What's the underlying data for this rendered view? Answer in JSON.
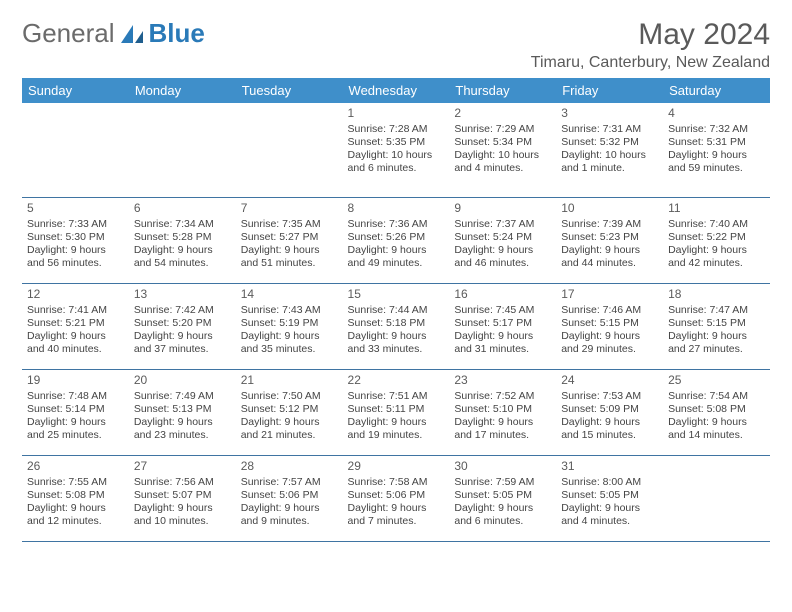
{
  "brand": {
    "part1": "General",
    "part2": "Blue"
  },
  "title": "May 2024",
  "location": "Timaru, Canterbury, New Zealand",
  "colors": {
    "header_bg": "#3f8fca",
    "header_text": "#ffffff",
    "border": "#3f74a2",
    "text": "#444444",
    "title_text": "#5a5a5a",
    "brand_blue": "#2a7ab8",
    "background": "#ffffff"
  },
  "font": {
    "title_size": 30,
    "location_size": 16,
    "header_size": 13,
    "day_size": 12,
    "body_size": 10.5
  },
  "dayHeaders": [
    "Sunday",
    "Monday",
    "Tuesday",
    "Wednesday",
    "Thursday",
    "Friday",
    "Saturday"
  ],
  "weeks": [
    [
      null,
      null,
      null,
      {
        "n": "1",
        "sr": "Sunrise: 7:28 AM",
        "ss": "Sunset: 5:35 PM",
        "d1": "Daylight: 10 hours",
        "d2": "and 6 minutes."
      },
      {
        "n": "2",
        "sr": "Sunrise: 7:29 AM",
        "ss": "Sunset: 5:34 PM",
        "d1": "Daylight: 10 hours",
        "d2": "and 4 minutes."
      },
      {
        "n": "3",
        "sr": "Sunrise: 7:31 AM",
        "ss": "Sunset: 5:32 PM",
        "d1": "Daylight: 10 hours",
        "d2": "and 1 minute."
      },
      {
        "n": "4",
        "sr": "Sunrise: 7:32 AM",
        "ss": "Sunset: 5:31 PM",
        "d1": "Daylight: 9 hours",
        "d2": "and 59 minutes."
      }
    ],
    [
      {
        "n": "5",
        "sr": "Sunrise: 7:33 AM",
        "ss": "Sunset: 5:30 PM",
        "d1": "Daylight: 9 hours",
        "d2": "and 56 minutes."
      },
      {
        "n": "6",
        "sr": "Sunrise: 7:34 AM",
        "ss": "Sunset: 5:28 PM",
        "d1": "Daylight: 9 hours",
        "d2": "and 54 minutes."
      },
      {
        "n": "7",
        "sr": "Sunrise: 7:35 AM",
        "ss": "Sunset: 5:27 PM",
        "d1": "Daylight: 9 hours",
        "d2": "and 51 minutes."
      },
      {
        "n": "8",
        "sr": "Sunrise: 7:36 AM",
        "ss": "Sunset: 5:26 PM",
        "d1": "Daylight: 9 hours",
        "d2": "and 49 minutes."
      },
      {
        "n": "9",
        "sr": "Sunrise: 7:37 AM",
        "ss": "Sunset: 5:24 PM",
        "d1": "Daylight: 9 hours",
        "d2": "and 46 minutes."
      },
      {
        "n": "10",
        "sr": "Sunrise: 7:39 AM",
        "ss": "Sunset: 5:23 PM",
        "d1": "Daylight: 9 hours",
        "d2": "and 44 minutes."
      },
      {
        "n": "11",
        "sr": "Sunrise: 7:40 AM",
        "ss": "Sunset: 5:22 PM",
        "d1": "Daylight: 9 hours",
        "d2": "and 42 minutes."
      }
    ],
    [
      {
        "n": "12",
        "sr": "Sunrise: 7:41 AM",
        "ss": "Sunset: 5:21 PM",
        "d1": "Daylight: 9 hours",
        "d2": "and 40 minutes."
      },
      {
        "n": "13",
        "sr": "Sunrise: 7:42 AM",
        "ss": "Sunset: 5:20 PM",
        "d1": "Daylight: 9 hours",
        "d2": "and 37 minutes."
      },
      {
        "n": "14",
        "sr": "Sunrise: 7:43 AM",
        "ss": "Sunset: 5:19 PM",
        "d1": "Daylight: 9 hours",
        "d2": "and 35 minutes."
      },
      {
        "n": "15",
        "sr": "Sunrise: 7:44 AM",
        "ss": "Sunset: 5:18 PM",
        "d1": "Daylight: 9 hours",
        "d2": "and 33 minutes."
      },
      {
        "n": "16",
        "sr": "Sunrise: 7:45 AM",
        "ss": "Sunset: 5:17 PM",
        "d1": "Daylight: 9 hours",
        "d2": "and 31 minutes."
      },
      {
        "n": "17",
        "sr": "Sunrise: 7:46 AM",
        "ss": "Sunset: 5:15 PM",
        "d1": "Daylight: 9 hours",
        "d2": "and 29 minutes."
      },
      {
        "n": "18",
        "sr": "Sunrise: 7:47 AM",
        "ss": "Sunset: 5:15 PM",
        "d1": "Daylight: 9 hours",
        "d2": "and 27 minutes."
      }
    ],
    [
      {
        "n": "19",
        "sr": "Sunrise: 7:48 AM",
        "ss": "Sunset: 5:14 PM",
        "d1": "Daylight: 9 hours",
        "d2": "and 25 minutes."
      },
      {
        "n": "20",
        "sr": "Sunrise: 7:49 AM",
        "ss": "Sunset: 5:13 PM",
        "d1": "Daylight: 9 hours",
        "d2": "and 23 minutes."
      },
      {
        "n": "21",
        "sr": "Sunrise: 7:50 AM",
        "ss": "Sunset: 5:12 PM",
        "d1": "Daylight: 9 hours",
        "d2": "and 21 minutes."
      },
      {
        "n": "22",
        "sr": "Sunrise: 7:51 AM",
        "ss": "Sunset: 5:11 PM",
        "d1": "Daylight: 9 hours",
        "d2": "and 19 minutes."
      },
      {
        "n": "23",
        "sr": "Sunrise: 7:52 AM",
        "ss": "Sunset: 5:10 PM",
        "d1": "Daylight: 9 hours",
        "d2": "and 17 minutes."
      },
      {
        "n": "24",
        "sr": "Sunrise: 7:53 AM",
        "ss": "Sunset: 5:09 PM",
        "d1": "Daylight: 9 hours",
        "d2": "and 15 minutes."
      },
      {
        "n": "25",
        "sr": "Sunrise: 7:54 AM",
        "ss": "Sunset: 5:08 PM",
        "d1": "Daylight: 9 hours",
        "d2": "and 14 minutes."
      }
    ],
    [
      {
        "n": "26",
        "sr": "Sunrise: 7:55 AM",
        "ss": "Sunset: 5:08 PM",
        "d1": "Daylight: 9 hours",
        "d2": "and 12 minutes."
      },
      {
        "n": "27",
        "sr": "Sunrise: 7:56 AM",
        "ss": "Sunset: 5:07 PM",
        "d1": "Daylight: 9 hours",
        "d2": "and 10 minutes."
      },
      {
        "n": "28",
        "sr": "Sunrise: 7:57 AM",
        "ss": "Sunset: 5:06 PM",
        "d1": "Daylight: 9 hours",
        "d2": "and 9 minutes."
      },
      {
        "n": "29",
        "sr": "Sunrise: 7:58 AM",
        "ss": "Sunset: 5:06 PM",
        "d1": "Daylight: 9 hours",
        "d2": "and 7 minutes."
      },
      {
        "n": "30",
        "sr": "Sunrise: 7:59 AM",
        "ss": "Sunset: 5:05 PM",
        "d1": "Daylight: 9 hours",
        "d2": "and 6 minutes."
      },
      {
        "n": "31",
        "sr": "Sunrise: 8:00 AM",
        "ss": "Sunset: 5:05 PM",
        "d1": "Daylight: 9 hours",
        "d2": "and 4 minutes."
      },
      null
    ]
  ]
}
